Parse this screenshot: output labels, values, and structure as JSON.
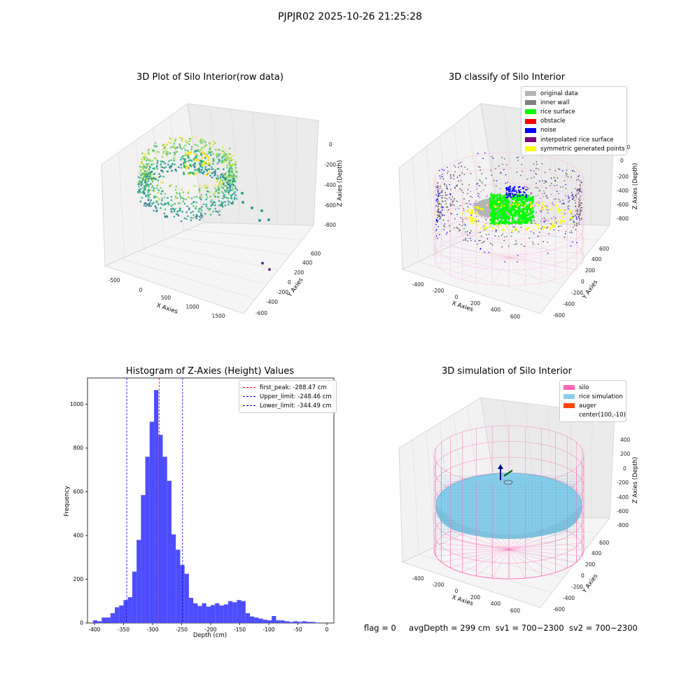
{
  "figure": {
    "suptitle": "PJPJR02 2025-10-26 21:25:28",
    "status": {
      "flag": "flag = 0",
      "avg_depth": "avgDepth = 299 cm",
      "sv1": "sv1 = 700~2300",
      "sv2": "sv2 = 700~2300"
    }
  },
  "colors": {
    "hist_bar": "#4d4dff",
    "first_peak_line": "#ff0000",
    "limit_line": "#0000ff",
    "original_data": "#b4b4b4",
    "inner_wall": "#808080",
    "rice_surface": "#00ff00",
    "obstacle": "#ff0000",
    "noise": "#0000ff",
    "interpolated": "#800080",
    "symmetric": "#ffff00",
    "silo": "#ff69b4",
    "rice_simulation": "#87ceeb",
    "auger": "#ff4500"
  },
  "chart_data": [
    {
      "type": "scatter",
      "panel": "3d-raw",
      "title": "3D Plot of Silo Interior(row data)",
      "xlabel": "X Axies",
      "ylabel": "Y Axies",
      "zlabel": "Z Axies (Depth)",
      "x_ticks": [
        "-500",
        "0",
        "500",
        "1000",
        "1500"
      ],
      "y_ticks": [
        "-600",
        "-400",
        "-200",
        "0",
        "200",
        "400",
        "600"
      ],
      "z_ticks": [
        "0",
        "-200",
        "-400",
        "-600",
        "-800"
      ],
      "colormap": "viridis"
    },
    {
      "type": "scatter",
      "panel": "3d-classify",
      "title": "3D classify of Silo Interior",
      "xlabel": "X Axies",
      "ylabel": "Y Axies",
      "zlabel": "Z Axies (Depth)",
      "x_ticks": [
        "-400",
        "-200",
        "0",
        "200",
        "400",
        "600"
      ],
      "y_ticks": [
        "-600",
        "-400",
        "-200",
        "0",
        "200",
        "400",
        "600"
      ],
      "z_ticks": [
        "200",
        "0",
        "-200",
        "-400",
        "-600",
        "-800"
      ],
      "legend": [
        "original data",
        "inner wall",
        "rice surface",
        "obstacle",
        "noise",
        "interpolated rice surface",
        "symmetric generated points"
      ],
      "legend_position": "top-right"
    },
    {
      "type": "bar",
      "panel": "histogram",
      "title": "Histogram of Z-Axies (Height) Values",
      "xlabel": "Depth (cm)",
      "ylabel": "Frequency",
      "xlim": [
        -412,
        12
      ],
      "ylim": [
        0,
        1120
      ],
      "x_ticks": [
        -400,
        -350,
        -300,
        -250,
        -200,
        -150,
        -100,
        -50,
        0
      ],
      "y_ticks": [
        0,
        200,
        400,
        600,
        800,
        1000
      ],
      "bin_width": 7.5,
      "bin_starts": [
        -402.5,
        -395,
        -387.5,
        -380,
        -372.5,
        -365,
        -357.5,
        -350,
        -342.5,
        -335,
        -327.5,
        -320,
        -312.5,
        -305,
        -297.5,
        -290,
        -282.5,
        -275,
        -267.5,
        -260,
        -252.5,
        -245,
        -237.5,
        -230,
        -222.5,
        -215,
        -207.5,
        -200,
        -192.5,
        -185,
        -177.5,
        -170,
        -162.5,
        -155,
        -147.5,
        -140,
        -132.5,
        -125,
        -117.5,
        -110,
        -102.5,
        -95,
        -87.5,
        -80,
        -72.5,
        -65,
        -57.5,
        -50,
        -42.5,
        -35,
        -27.5,
        -20,
        -12.5,
        -5
      ],
      "values": [
        12,
        8,
        25,
        25,
        45,
        72,
        80,
        105,
        118,
        235,
        380,
        585,
        760,
        920,
        1065,
        860,
        760,
        650,
        405,
        335,
        265,
        225,
        115,
        90,
        78,
        90,
        75,
        82,
        90,
        80,
        85,
        100,
        95,
        105,
        100,
        45,
        30,
        25,
        20,
        15,
        12,
        32,
        12,
        12,
        8,
        5,
        8,
        5,
        8,
        5,
        5,
        2,
        0,
        0
      ],
      "reference_lines": [
        {
          "name": "first_peak",
          "label": "first_peak: -288.47 cm",
          "x": -288.47,
          "color": "red"
        },
        {
          "name": "upper_limit",
          "label": "Upper_limit: -248.46 cm",
          "x": -248.46,
          "color": "blue"
        },
        {
          "name": "lower_limit",
          "label": "Lower_limit: -344.49 cm",
          "x": -344.49,
          "color": "blue"
        }
      ],
      "legend_position": "top-right"
    },
    {
      "type": "scatter",
      "panel": "3d-simulation",
      "title": "3D simulation of Silo Interior",
      "xlabel": "X Axies",
      "ylabel": "Y Axies",
      "zlabel": "Z Axies (Depth)",
      "x_ticks": [
        "-400",
        "-200",
        "0",
        "200",
        "400",
        "600"
      ],
      "y_ticks": [
        "-600",
        "-400",
        "-200",
        "0",
        "200",
        "400",
        "600"
      ],
      "z_ticks": [
        "400",
        "200",
        "0",
        "-200",
        "-400",
        "-600",
        "-800"
      ],
      "legend": [
        "silo",
        "rice simulation",
        "auger",
        "center(100,-10)"
      ],
      "legend_position": "top-right"
    }
  ]
}
